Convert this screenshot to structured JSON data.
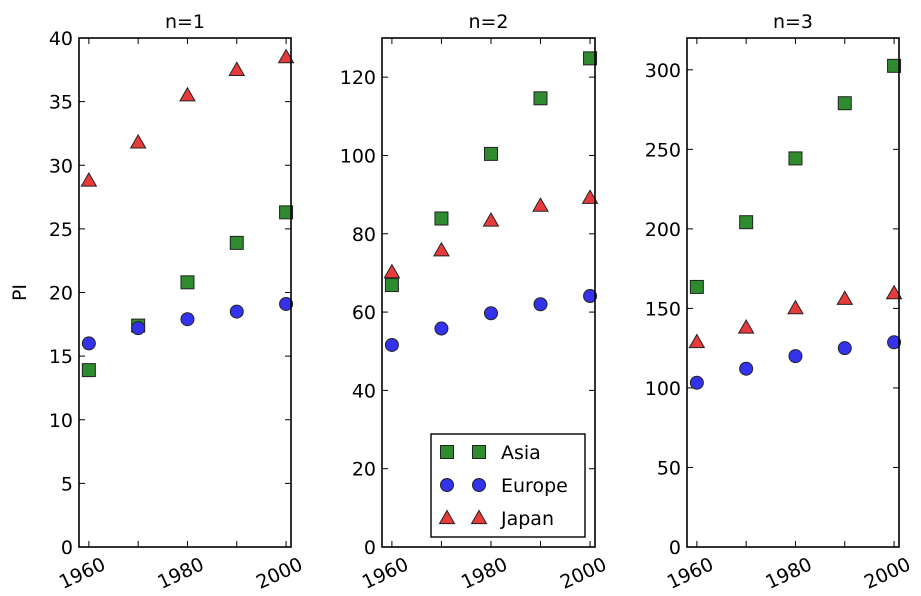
{
  "chart_data": [
    {
      "type": "scatter",
      "title": "n=1",
      "ylabel": "PI",
      "xlim": [
        1958,
        2001
      ],
      "ylim": [
        0,
        40
      ],
      "xticks": [
        "1960",
        "1980",
        "2000"
      ],
      "xticks_minor": [
        1970,
        1990
      ],
      "yticks": [
        "0",
        "5",
        "10",
        "15",
        "20",
        "25",
        "30",
        "35",
        "40"
      ],
      "x": [
        1960,
        1970,
        1980,
        1990,
        2000
      ],
      "series": [
        {
          "name": "Asia",
          "marker": "square",
          "color": "#2e8b2e",
          "values": [
            13.9,
            17.4,
            20.8,
            23.9,
            26.3
          ]
        },
        {
          "name": "Europe",
          "marker": "circle",
          "color": "#3333ee",
          "values": [
            16.0,
            17.2,
            17.9,
            18.5,
            19.1
          ]
        },
        {
          "name": "Japan",
          "marker": "triangle",
          "color": "#e83a3a",
          "values": [
            28.8,
            31.8,
            35.5,
            37.5,
            38.5
          ]
        }
      ]
    },
    {
      "type": "scatter",
      "title": "n=2",
      "ylabel": "",
      "xlim": [
        1958,
        2001
      ],
      "ylim": [
        0,
        130
      ],
      "xticks": [
        "1960",
        "1980",
        "2000"
      ],
      "xticks_minor": [
        1970,
        1990
      ],
      "yticks": [
        "0",
        "20",
        "40",
        "60",
        "80",
        "100",
        "120"
      ],
      "x": [
        1960,
        1970,
        1980,
        1990,
        2000
      ],
      "legend": {
        "placement": "lower right",
        "entries": [
          "Asia",
          "Europe",
          "Japan"
        ]
      },
      "series": [
        {
          "name": "Asia",
          "marker": "square",
          "color": "#2e8b2e",
          "values": [
            66.9,
            83.9,
            100.4,
            114.6,
            124.8
          ]
        },
        {
          "name": "Europe",
          "marker": "circle",
          "color": "#3333ee",
          "values": [
            51.6,
            55.8,
            59.7,
            62.0,
            64.1
          ]
        },
        {
          "name": "Japan",
          "marker": "triangle",
          "color": "#e83a3a",
          "values": [
            70.2,
            75.8,
            83.4,
            87.2,
            89.2
          ]
        }
      ]
    },
    {
      "type": "scatter",
      "title": "n=3",
      "ylabel": "",
      "xlim": [
        1958,
        2001
      ],
      "ylim": [
        0,
        320
      ],
      "xticks": [
        "1960",
        "1980",
        "2000"
      ],
      "xticks_minor": [
        1970,
        1990
      ],
      "yticks": [
        "0",
        "50",
        "100",
        "150",
        "200",
        "250",
        "300"
      ],
      "x": [
        1960,
        1970,
        1980,
        1990,
        2000
      ],
      "series": [
        {
          "name": "Asia",
          "marker": "square",
          "color": "#2e8b2e",
          "values": [
            163.5,
            204.2,
            244.3,
            279.0,
            302.5
          ]
        },
        {
          "name": "Europe",
          "marker": "circle",
          "color": "#3333ee",
          "values": [
            103.3,
            112.1,
            120.0,
            125.0,
            128.7
          ]
        },
        {
          "name": "Japan",
          "marker": "triangle",
          "color": "#e83a3a",
          "values": [
            128.9,
            138.0,
            150.2,
            156.1,
            159.6
          ]
        }
      ]
    }
  ]
}
